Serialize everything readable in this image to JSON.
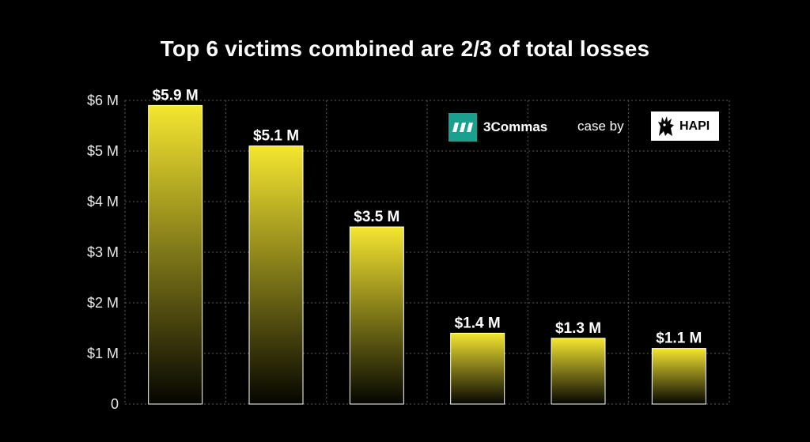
{
  "chart_data": {
    "type": "bar",
    "title": "Top 6 victims combined are 2/3 of total losses",
    "xlabel": "",
    "ylabel": "",
    "categories": [
      "",
      "",
      "",
      "",
      "",
      ""
    ],
    "values": [
      5.9,
      5.1,
      3.5,
      1.4,
      1.3,
      1.1
    ],
    "value_labels": [
      "$5.9 M",
      "$5.1 M",
      "$3.5 M",
      "$1.4 M",
      "$1.3 M",
      "$1.1 M"
    ],
    "ylim": [
      0,
      6
    ],
    "y_ticks": [
      0,
      1,
      2,
      3,
      4,
      5,
      6
    ],
    "y_tick_labels": [
      "0",
      "$1 M",
      "$2 M",
      "$3 M",
      "$4 M",
      "$5 M",
      "$6 M"
    ],
    "grid": true,
    "colors": {
      "background": "#000000",
      "bar_top": "#f5e630",
      "bar_bottom": "#050500",
      "bar_stroke": "#ffffff",
      "grid": "#5a5a5a"
    }
  },
  "branding": {
    "partner_name": "3Commas",
    "partner_color": "#1aa08f",
    "case_by": "case by",
    "author_name": "HAPI"
  }
}
